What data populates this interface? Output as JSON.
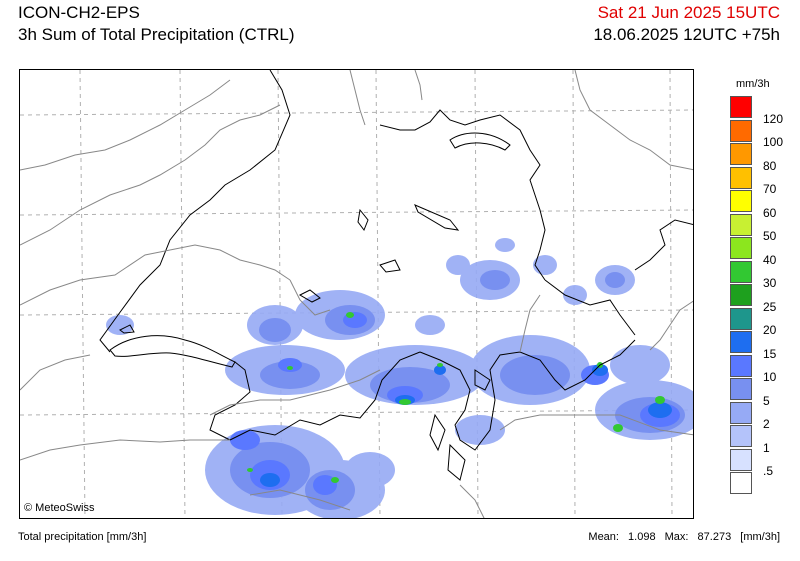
{
  "header": {
    "model": "ICON-CH2-EPS",
    "product": "3h Sum of Total Precipitation (CTRL)",
    "valid_time": "Sat 21 Jun 2025 15UTC",
    "run_time": "18.06.2025 12UTC +75h"
  },
  "map": {
    "copyright": "© MeteoSwiss",
    "border_color": "#888888",
    "coast_color": "#000000",
    "grid_color": "#b0b0b0"
  },
  "legend": {
    "unit": "mm/3h",
    "ticks": [
      "120",
      "100",
      "80",
      "70",
      "60",
      "50",
      "40",
      "30",
      "25",
      "20",
      "15",
      "10",
      "5",
      "2",
      "1",
      ".5"
    ],
    "colors": [
      "#ff0000",
      "#ff6a00",
      "#ff9800",
      "#ffc000",
      "#ffff00",
      "#c8f032",
      "#8ce61e",
      "#32c832",
      "#1ea01e",
      "#1e968c",
      "#1e6ef0",
      "#5a78ff",
      "#7890f0",
      "#96aaf5",
      "#b4c3fa",
      "#d7e1ff",
      "#ffffff"
    ]
  },
  "footer": {
    "variable": "Total precipitation [mm/3h]",
    "mean_label": "Mean:",
    "mean_value": "1.098",
    "max_label": "Max:",
    "max_value": "87.273",
    "unit": "[mm/3h]"
  }
}
